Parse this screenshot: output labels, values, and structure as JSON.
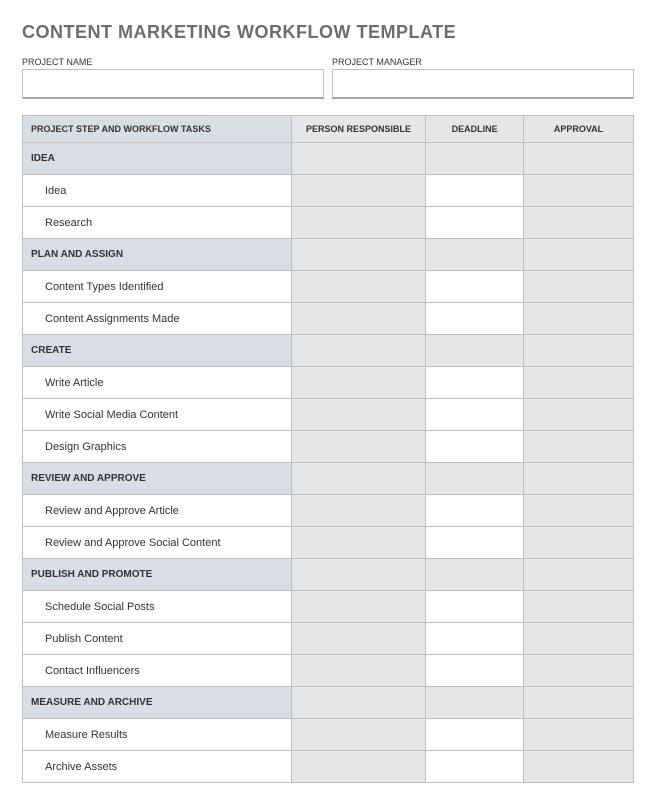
{
  "title": "CONTENT MARKETING WORKFLOW TEMPLATE",
  "meta": {
    "projectName": {
      "label": "PROJECT NAME",
      "value": ""
    },
    "projectManager": {
      "label": "PROJECT MANAGER",
      "value": ""
    }
  },
  "columns": {
    "c1": "PROJECT STEP AND WORKFLOW TASKS",
    "c2": "PERSON RESPONSIBLE",
    "c3": "DEADLINE",
    "c4": "APPROVAL"
  },
  "sections": [
    {
      "name": "IDEA",
      "tasks": [
        "Idea",
        "Research"
      ]
    },
    {
      "name": "PLAN AND ASSIGN",
      "tasks": [
        "Content Types Identified",
        "Content Assignments Made"
      ]
    },
    {
      "name": "CREATE",
      "tasks": [
        "Write Article",
        "Write Social Media Content",
        "Design Graphics"
      ]
    },
    {
      "name": "REVIEW AND APPROVE",
      "tasks": [
        "Review and Approve Article",
        "Review and Approve Social Content"
      ]
    },
    {
      "name": "PUBLISH AND PROMOTE",
      "tasks": [
        "Schedule Social Posts",
        "Publish Content",
        "Contact Influencers"
      ]
    },
    {
      "name": "MEASURE AND ARCHIVE",
      "tasks": [
        "Measure Results",
        "Archive Assets"
      ]
    }
  ],
  "colors": {
    "title_color": "#6d6d6d",
    "border_color": "#bfbfbf",
    "header_bg": "#e6e6e6",
    "header_first_bg": "#d9dde4",
    "section_bg": "#d9dde4",
    "section_blank_bg": "#e6e6e6",
    "task_bg": "#ffffff",
    "task_blank_alt_bg": "#e6e6e6"
  }
}
